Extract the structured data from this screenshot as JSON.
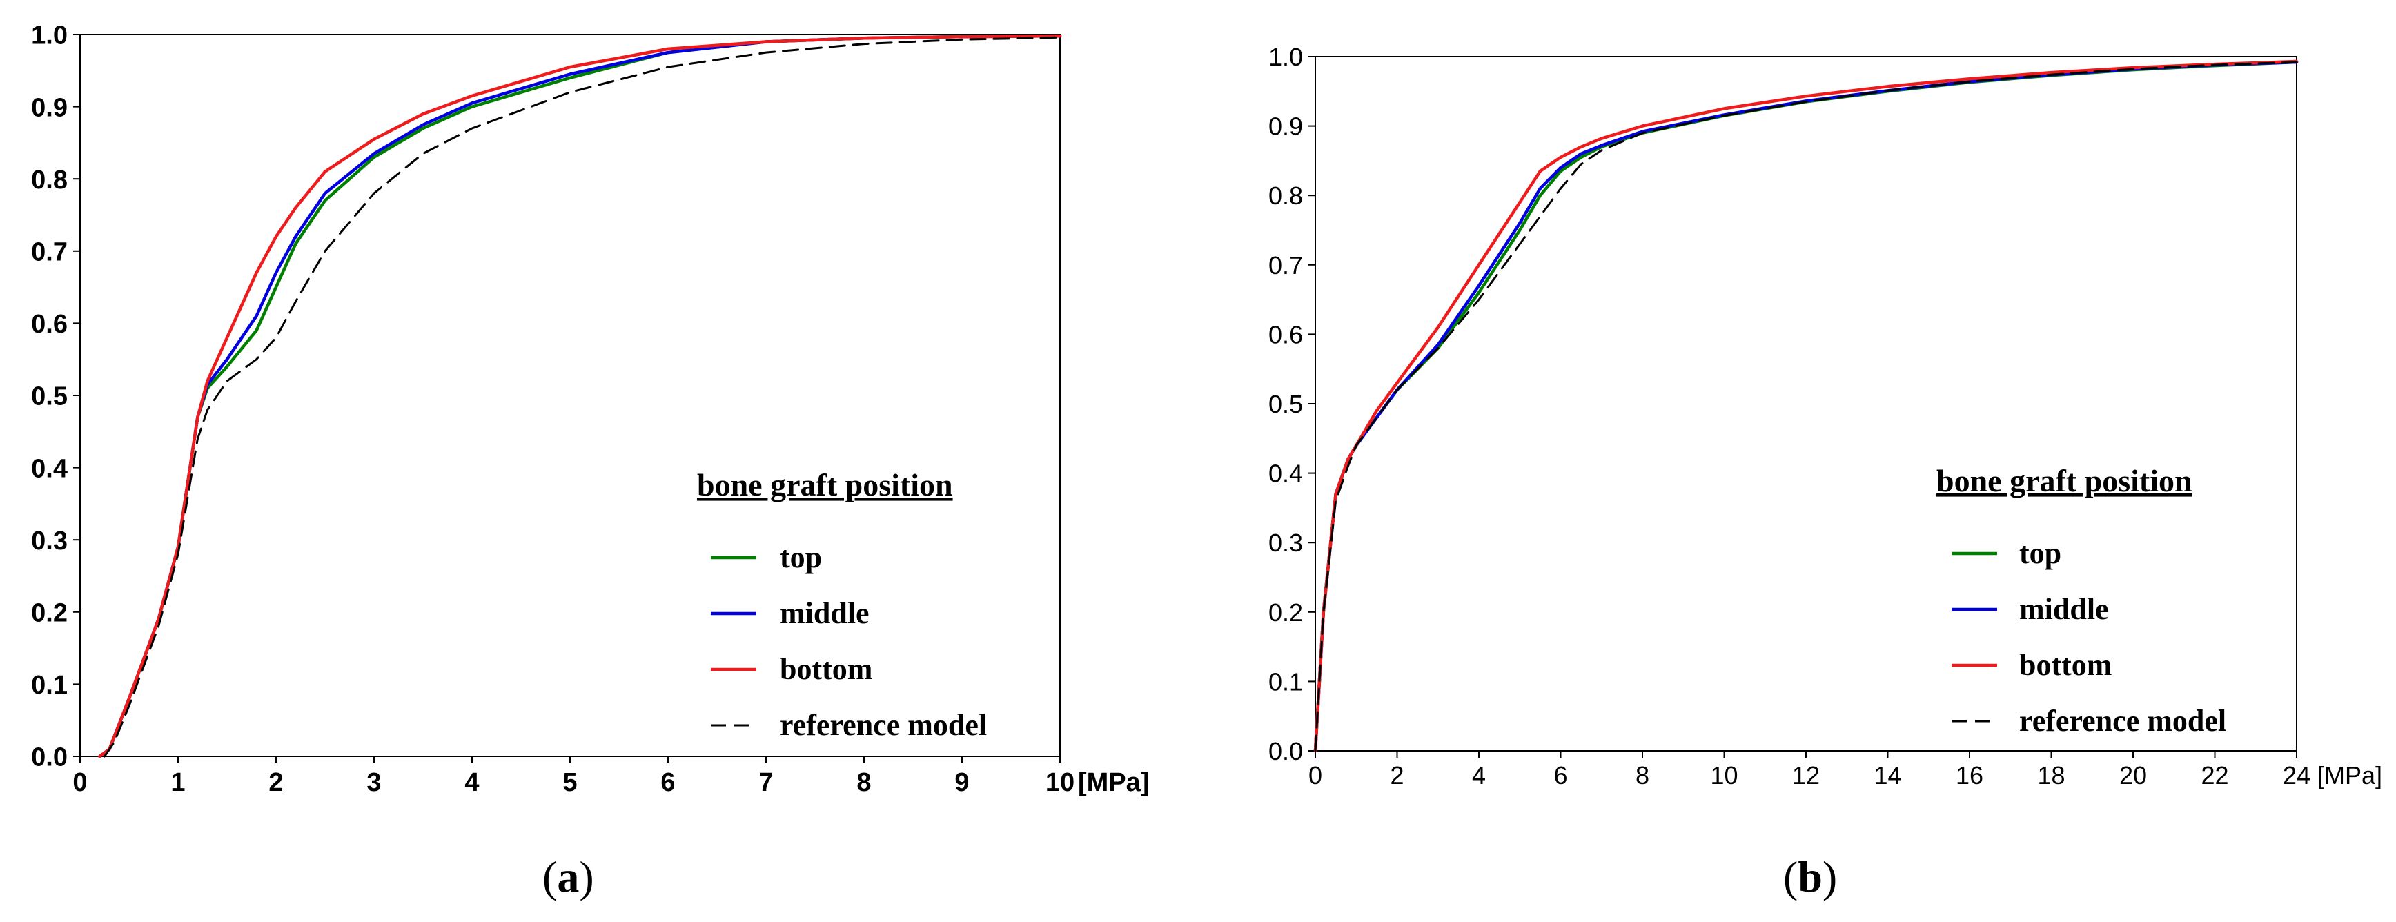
{
  "chart_data": [
    {
      "type": "line",
      "panel_label": "a",
      "x_unit": "[MPa]",
      "xlim": [
        0,
        10
      ],
      "ylim": [
        0,
        1.0
      ],
      "x_ticks": [
        "0",
        "1",
        "2",
        "3",
        "4",
        "5",
        "6",
        "7",
        "8",
        "9",
        "10"
      ],
      "y_ticks": [
        "0.0",
        "0.1",
        "0.2",
        "0.3",
        "0.4",
        "0.5",
        "0.6",
        "0.7",
        "0.8",
        "0.9",
        "1.0"
      ],
      "grid": false,
      "legend": {
        "title": "bone graft position",
        "position": "bottom-right"
      },
      "series": [
        {
          "name": "top",
          "color": "#008000",
          "dash": "solid",
          "x": [
            0.2,
            0.3,
            0.5,
            0.8,
            1.0,
            1.1,
            1.2,
            1.3,
            1.5,
            1.8,
            2.0,
            2.2,
            2.5,
            3.0,
            3.5,
            4.0,
            5.0,
            6.0,
            7.0,
            8.0,
            9.0,
            10.0
          ],
          "y": [
            0.0,
            0.01,
            0.08,
            0.19,
            0.29,
            0.38,
            0.47,
            0.51,
            0.54,
            0.59,
            0.65,
            0.71,
            0.77,
            0.83,
            0.87,
            0.9,
            0.94,
            0.975,
            0.99,
            0.995,
            0.997,
            0.998
          ]
        },
        {
          "name": "middle",
          "color": "#0000e0",
          "dash": "solid",
          "x": [
            0.2,
            0.3,
            0.5,
            0.8,
            1.0,
            1.1,
            1.2,
            1.3,
            1.5,
            1.8,
            2.0,
            2.2,
            2.5,
            3.0,
            3.5,
            4.0,
            5.0,
            6.0,
            7.0,
            8.0,
            9.0,
            10.0
          ],
          "y": [
            0.0,
            0.01,
            0.08,
            0.19,
            0.29,
            0.38,
            0.47,
            0.515,
            0.55,
            0.61,
            0.67,
            0.72,
            0.78,
            0.835,
            0.875,
            0.905,
            0.945,
            0.975,
            0.99,
            0.995,
            0.997,
            0.998
          ]
        },
        {
          "name": "bottom",
          "color": "#ee1c1c",
          "dash": "solid",
          "x": [
            0.2,
            0.3,
            0.5,
            0.8,
            1.0,
            1.1,
            1.2,
            1.3,
            1.5,
            1.8,
            2.0,
            2.2,
            2.5,
            3.0,
            3.5,
            4.0,
            5.0,
            6.0,
            7.0,
            8.0,
            9.0,
            10.0
          ],
          "y": [
            0.0,
            0.01,
            0.08,
            0.19,
            0.29,
            0.38,
            0.47,
            0.52,
            0.58,
            0.67,
            0.72,
            0.76,
            0.81,
            0.855,
            0.89,
            0.915,
            0.955,
            0.98,
            0.99,
            0.995,
            0.997,
            0.998
          ]
        },
        {
          "name": "reference model",
          "color": "#000000",
          "dash": "dashed",
          "x": [
            0.25,
            0.35,
            0.5,
            0.8,
            1.0,
            1.1,
            1.2,
            1.3,
            1.5,
            1.8,
            2.0,
            2.2,
            2.5,
            3.0,
            3.5,
            4.0,
            5.0,
            6.0,
            7.0,
            8.0,
            9.0,
            10.0
          ],
          "y": [
            0.0,
            0.02,
            0.07,
            0.18,
            0.28,
            0.36,
            0.44,
            0.48,
            0.52,
            0.55,
            0.58,
            0.63,
            0.7,
            0.78,
            0.835,
            0.87,
            0.92,
            0.955,
            0.975,
            0.987,
            0.993,
            0.996
          ]
        }
      ]
    },
    {
      "type": "line",
      "panel_label": "b",
      "x_unit": "[MPa]",
      "xlim": [
        0,
        24
      ],
      "ylim": [
        0,
        1.0
      ],
      "x_ticks": [
        "0",
        "2",
        "4",
        "6",
        "8",
        "10",
        "12",
        "14",
        "16",
        "18",
        "20",
        "22",
        "24"
      ],
      "y_ticks": [
        "0.0",
        "0.1",
        "0.2",
        "0.3",
        "0.4",
        "0.5",
        "0.6",
        "0.7",
        "0.8",
        "0.9",
        "1.0"
      ],
      "grid": false,
      "legend": {
        "title": "bone graft position",
        "position": "bottom-right"
      },
      "series": [
        {
          "name": "top",
          "color": "#008000",
          "dash": "solid",
          "x": [
            0,
            0.2,
            0.5,
            0.8,
            1.0,
            1.5,
            2.0,
            3.0,
            4.0,
            5.0,
            5.5,
            6.0,
            6.5,
            7.0,
            8.0,
            10.0,
            12.0,
            14.0,
            16.0,
            18.0,
            20.0,
            22.0,
            24.0
          ],
          "y": [
            0.0,
            0.2,
            0.37,
            0.42,
            0.44,
            0.48,
            0.52,
            0.58,
            0.66,
            0.75,
            0.8,
            0.835,
            0.855,
            0.87,
            0.89,
            0.915,
            0.935,
            0.95,
            0.963,
            0.973,
            0.981,
            0.987,
            0.992
          ]
        },
        {
          "name": "middle",
          "color": "#0000e0",
          "dash": "solid",
          "x": [
            0,
            0.2,
            0.5,
            0.8,
            1.0,
            1.5,
            2.0,
            3.0,
            4.0,
            5.0,
            5.5,
            6.0,
            6.5,
            7.0,
            8.0,
            10.0,
            12.0,
            14.0,
            16.0,
            18.0,
            20.0,
            22.0,
            24.0
          ],
          "y": [
            0.0,
            0.2,
            0.37,
            0.42,
            0.44,
            0.48,
            0.52,
            0.585,
            0.67,
            0.76,
            0.81,
            0.84,
            0.86,
            0.872,
            0.892,
            0.916,
            0.936,
            0.951,
            0.964,
            0.974,
            0.982,
            0.988,
            0.992
          ]
        },
        {
          "name": "bottom",
          "color": "#ee1c1c",
          "dash": "solid",
          "x": [
            0,
            0.2,
            0.5,
            0.8,
            1.0,
            1.5,
            2.0,
            3.0,
            4.0,
            5.0,
            5.5,
            6.0,
            6.5,
            7.0,
            8.0,
            10.0,
            12.0,
            14.0,
            16.0,
            18.0,
            20.0,
            22.0,
            24.0
          ],
          "y": [
            0.0,
            0.2,
            0.37,
            0.42,
            0.44,
            0.49,
            0.53,
            0.61,
            0.7,
            0.79,
            0.835,
            0.855,
            0.87,
            0.882,
            0.9,
            0.925,
            0.943,
            0.957,
            0.968,
            0.977,
            0.984,
            0.989,
            0.993
          ]
        },
        {
          "name": "reference model",
          "color": "#000000",
          "dash": "dashed",
          "x": [
            0,
            0.2,
            0.5,
            0.8,
            1.0,
            1.5,
            2.0,
            3.0,
            4.0,
            5.0,
            5.5,
            6.0,
            6.5,
            7.0,
            8.0,
            10.0,
            12.0,
            14.0,
            16.0,
            18.0,
            20.0,
            22.0,
            24.0
          ],
          "y": [
            0.0,
            0.2,
            0.36,
            0.41,
            0.44,
            0.48,
            0.52,
            0.58,
            0.65,
            0.73,
            0.77,
            0.81,
            0.845,
            0.865,
            0.89,
            0.915,
            0.935,
            0.951,
            0.964,
            0.974,
            0.982,
            0.988,
            0.992
          ]
        }
      ]
    }
  ]
}
